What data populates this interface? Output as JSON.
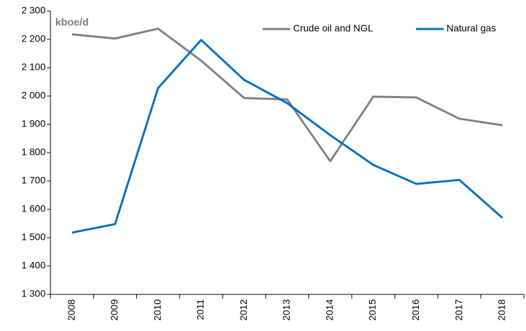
{
  "chart_data": {
    "type": "line",
    "y_label": "kboe/d",
    "categories": [
      "2008",
      "2009",
      "2010",
      "2011",
      "2012",
      "2013",
      "2014",
      "2015",
      "2016",
      "2017",
      "2018"
    ],
    "series": [
      {
        "name": "Crude oil and NGL",
        "color": "#808080",
        "values": [
          2218,
          2203,
          2238,
          2125,
          1993,
          1988,
          1770,
          1998,
          1995,
          1920,
          1897
        ]
      },
      {
        "name": "Natural gas",
        "color": "#0070c0",
        "values": [
          1518,
          1548,
          2028,
          2198,
          2057,
          1975,
          1862,
          1757,
          1690,
          1704,
          1570
        ]
      }
    ],
    "ylim": [
      1300,
      2300
    ],
    "yticks": [
      {
        "value": 1300,
        "label": "1 300"
      },
      {
        "value": 1400,
        "label": "1 400"
      },
      {
        "value": 1500,
        "label": "1 500"
      },
      {
        "value": 1600,
        "label": "1 600"
      },
      {
        "value": 1700,
        "label": "1 700"
      },
      {
        "value": 1800,
        "label": "1 800"
      },
      {
        "value": 1900,
        "label": "1 900"
      },
      {
        "value": 2000,
        "label": "2 000"
      },
      {
        "value": 2100,
        "label": "2 100"
      },
      {
        "value": 2200,
        "label": "2 200"
      },
      {
        "value": 2300,
        "label": "2 300"
      }
    ],
    "grid": false,
    "legend": "top-right"
  }
}
